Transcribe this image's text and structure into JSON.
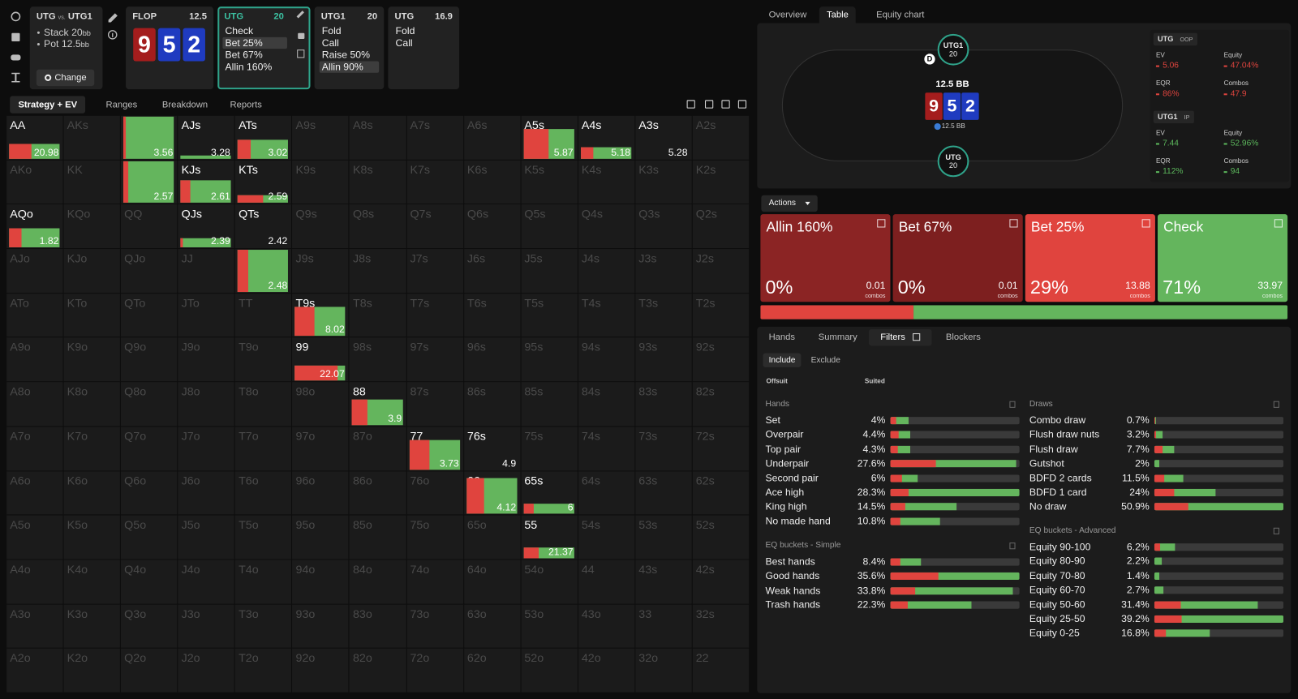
{
  "spot": {
    "left": "UTG",
    "vs": "vs.",
    "right": "UTG1",
    "stack": "Stack 20",
    "stack_unit": "bb",
    "pot": "Pot 12.5",
    "pot_unit": "bb",
    "button": "Change"
  },
  "board": {
    "street": "FLOP",
    "pot": "12.5",
    "cards": [
      {
        "rank": "9",
        "color": "#a41d1d"
      },
      {
        "rank": "5",
        "color": "#1f3bc0"
      },
      {
        "rank": "2",
        "color": "#1f3bc0"
      }
    ]
  },
  "players": [
    {
      "name": "UTG",
      "stack": "20",
      "actions": [
        "Check",
        "Bet 25%",
        "Bet 67%",
        "Allin 160%"
      ],
      "selected": 1,
      "active": true
    },
    {
      "name": "UTG1",
      "stack": "20",
      "actions": [
        "Fold",
        "Call",
        "Raise 50%",
        "Allin 90%"
      ],
      "selected": 3,
      "active": false
    },
    {
      "name": "UTG",
      "stack": "16.9",
      "actions": [
        "Fold",
        "Call"
      ],
      "selected": null,
      "active": false
    }
  ],
  "matrix": {
    "tabs": [
      "Strategy + EV",
      "Ranges",
      "Breakdown",
      "Reports"
    ],
    "rows": [
      [
        {
          "hand": "AA",
          "ev": 20.98,
          "bet": 45,
          "weight": 35
        },
        "AKs",
        {
          "hand": "AQs",
          "ev": 3.56,
          "bet": 5,
          "weight": 100
        },
        {
          "hand": "AJs",
          "ev": 3.28,
          "bet": 0,
          "weight": 8
        },
        {
          "hand": "ATs",
          "ev": 3.02,
          "bet": 25,
          "weight": 45
        },
        "A9s",
        "A8s",
        "A7s",
        "A6s",
        {
          "hand": "A5s",
          "ev": 5.87,
          "bet": 50,
          "weight": 70
        },
        {
          "hand": "A4s",
          "ev": 5.18,
          "bet": 25,
          "weight": 28
        },
        {
          "hand": "A3s",
          "ev": 5.28,
          "bet": 0,
          "weight": 0
        },
        "A2s"
      ],
      [
        "AKo",
        "KK",
        {
          "hand": "KQs",
          "ev": 2.57,
          "bet": 10,
          "weight": 100
        },
        {
          "hand": "KJs",
          "ev": 2.61,
          "bet": 20,
          "weight": 55
        },
        {
          "hand": "KTs",
          "ev": 2.59,
          "bet": 50,
          "weight": 18
        },
        "K9s",
        "K8s",
        "K7s",
        "K6s",
        "K5s",
        "K4s",
        "K3s",
        "K2s"
      ],
      [
        {
          "hand": "AQo",
          "ev": 1.82,
          "bet": 25,
          "weight": 45
        },
        "KQo",
        "QQ",
        {
          "hand": "QJs",
          "ev": 2.39,
          "bet": 5,
          "weight": 22
        },
        {
          "hand": "QTs",
          "ev": 2.42,
          "bet": 0,
          "weight": 0
        },
        "Q9s",
        "Q8s",
        "Q7s",
        "Q6s",
        "Q5s",
        "Q4s",
        "Q3s",
        "Q2s"
      ],
      [
        "AJo",
        "KJo",
        "QJo",
        "JJ",
        {
          "hand": "JTs",
          "ev": 2.48,
          "bet": 20,
          "weight": 100
        },
        "J9s",
        "J8s",
        "J7s",
        "J6s",
        "J5s",
        "J4s",
        "J3s",
        "J2s"
      ],
      [
        "ATo",
        "KTo",
        "QTo",
        "JTo",
        "TT",
        {
          "hand": "T9s",
          "ev": 8.02,
          "bet": 38,
          "weight": 70
        },
        "T8s",
        "T7s",
        "T6s",
        "T5s",
        "T4s",
        "T3s",
        "T2s"
      ],
      [
        "A9o",
        "K9o",
        "Q9o",
        "J9o",
        "T9o",
        {
          "hand": "99",
          "ev": 22.07,
          "bet": 85,
          "weight": 35
        },
        "98s",
        "97s",
        "96s",
        "95s",
        "94s",
        "93s",
        "92s"
      ],
      [
        "A8o",
        "K8o",
        "Q8o",
        "J8o",
        "T8o",
        "98o",
        {
          "hand": "88",
          "ev": 3.9,
          "bet": 30,
          "weight": 60
        },
        "87s",
        "86s",
        "85s",
        "84s",
        "83s",
        "82s"
      ],
      [
        "A7o",
        "K7o",
        "Q7o",
        "J7o",
        "T7o",
        "97o",
        "87o",
        {
          "hand": "77",
          "ev": 3.73,
          "bet": 40,
          "weight": 70
        },
        {
          "hand": "76s",
          "ev": 4.9,
          "bet": 0,
          "weight": 0
        },
        "75s",
        "74s",
        "73s",
        "72s"
      ],
      [
        "A6o",
        "K6o",
        "Q6o",
        "J6o",
        "T6o",
        "96o",
        "86o",
        "76o",
        {
          "hand": "66",
          "ev": 4.12,
          "bet": 35,
          "weight": 85
        },
        {
          "hand": "65s",
          "ev": 6,
          "bet": 20,
          "weight": 25
        },
        "64s",
        "63s",
        "62s"
      ],
      [
        "A5o",
        "K5o",
        "Q5o",
        "J5o",
        "T5o",
        "95o",
        "85o",
        "75o",
        "65o",
        {
          "hand": "55",
          "ev": 21.37,
          "bet": 30,
          "weight": 25
        },
        "54s",
        "53s",
        "52s"
      ],
      [
        "A4o",
        "K4o",
        "Q4o",
        "J4o",
        "T4o",
        "94o",
        "84o",
        "74o",
        "64o",
        "54o",
        "44",
        "43s",
        "42s"
      ],
      [
        "A3o",
        "K3o",
        "Q3o",
        "J3o",
        "T3o",
        "93o",
        "83o",
        "73o",
        "63o",
        "53o",
        "43o",
        "33",
        "32s"
      ],
      [
        "A2o",
        "K2o",
        "Q2o",
        "J2o",
        "T2o",
        "92o",
        "82o",
        "72o",
        "62o",
        "52o",
        "42o",
        "32o",
        "22"
      ]
    ]
  },
  "view_tabs": [
    "Overview",
    "Table",
    "Equity chart"
  ],
  "table": {
    "seats": [
      {
        "name": "UTG1",
        "stack": "20"
      },
      {
        "name": "UTG",
        "stack": "20"
      }
    ],
    "pot": "12.5 BB",
    "chip": "12.5 BB",
    "dealer": "D"
  },
  "stats": [
    {
      "name": "UTG",
      "position": "OOP",
      "color": "#e0443e",
      "items": [
        {
          "label": "EV",
          "value": "5.06"
        },
        {
          "label": "Equity",
          "value": "47.04%"
        },
        {
          "label": "EQR",
          "value": "86%"
        },
        {
          "label": "Combos",
          "value": "47.9"
        }
      ]
    },
    {
      "name": "UTG1",
      "position": "IP",
      "color": "#5cb85c",
      "items": [
        {
          "label": "EV",
          "value": "7.44"
        },
        {
          "label": "Equity",
          "value": "52.96%"
        },
        {
          "label": "EQR",
          "value": "112%"
        },
        {
          "label": "Combos",
          "value": "94"
        }
      ]
    }
  ],
  "actions": {
    "label": "Actions",
    "combos_label": "combos",
    "cards": [
      {
        "name": "Allin 160%",
        "freq": {
          "value": 0,
          "label": "0%"
        },
        "combos": 0.01,
        "color": "#8b2424"
      },
      {
        "name": "Bet 67%",
        "freq": {
          "value": 0,
          "label": "0%"
        },
        "combos": 0.01,
        "color": "#7d1f1f"
      },
      {
        "name": "Bet 25%",
        "freq": {
          "value": 29,
          "label": "29%"
        },
        "combos": 13.88,
        "color": "#e0443e"
      },
      {
        "name": "Check",
        "freq": {
          "value": 71,
          "label": "71%"
        },
        "combos": 33.97,
        "color": "#64b55d"
      }
    ]
  },
  "filters": {
    "tabs": [
      "Hands",
      "Summary",
      "Filters",
      "Blockers"
    ],
    "selected_tab": 2,
    "mode": [
      "Include",
      "Exclude"
    ],
    "offsuit": "Offsuit",
    "suited": "Suited",
    "sections": [
      {
        "title": "Hands",
        "rows": [
          {
            "name": "Set",
            "pct": {
              "value": 4,
              "label": "4%"
            },
            "bet": 30
          },
          {
            "name": "Overpair",
            "pct": {
              "value": 4.4,
              "label": "4.4%"
            },
            "bet": 40
          },
          {
            "name": "Top pair",
            "pct": {
              "value": 4.3,
              "label": "4.3%"
            },
            "bet": 40
          },
          {
            "name": "Underpair",
            "pct": {
              "value": 27.6,
              "label": "27.6%"
            },
            "bet": 36
          },
          {
            "name": "Second pair",
            "pct": {
              "value": 6,
              "label": "6%"
            },
            "bet": 43
          },
          {
            "name": "Ace high",
            "pct": {
              "value": 28.3,
              "label": "28.3%"
            },
            "bet": 14
          },
          {
            "name": "King high",
            "pct": {
              "value": 14.5,
              "label": "14.5%"
            },
            "bet": 22
          },
          {
            "name": "No made hand",
            "pct": {
              "value": 10.8,
              "label": "10.8%"
            },
            "bet": 20
          }
        ]
      },
      {
        "title": "EQ buckets - Simple",
        "rows": [
          {
            "name": "Best hands",
            "pct": {
              "value": 8.4,
              "label": "8.4%"
            },
            "bet": 32
          },
          {
            "name": "Good hands",
            "pct": {
              "value": 35.6,
              "label": "35.6%"
            },
            "bet": 37
          },
          {
            "name": "Weak hands",
            "pct": {
              "value": 33.8,
              "label": "33.8%"
            },
            "bet": 20
          },
          {
            "name": "Trash hands",
            "pct": {
              "value": 22.3,
              "label": "22.3%"
            },
            "bet": 21
          }
        ]
      },
      {
        "title": "Draws",
        "rows": [
          {
            "name": "Combo draw",
            "pct": {
              "value": 0.7,
              "label": "0.7%"
            },
            "bet": 50
          },
          {
            "name": "Flush draw nuts",
            "pct": {
              "value": 3.2,
              "label": "3.2%"
            },
            "bet": 20
          },
          {
            "name": "Flush draw",
            "pct": {
              "value": 7.7,
              "label": "7.7%"
            },
            "bet": 43
          },
          {
            "name": "Gutshot",
            "pct": {
              "value": 2,
              "label": "2%"
            },
            "bet": 0
          },
          {
            "name": "BDFD 2 cards",
            "pct": {
              "value": 11.5,
              "label": "11.5%"
            },
            "bet": 34
          },
          {
            "name": "BDFD 1 card",
            "pct": {
              "value": 24,
              "label": "24%"
            },
            "bet": 33
          },
          {
            "name": "No draw",
            "pct": {
              "value": 50.9,
              "label": "50.9%"
            },
            "bet": 26
          }
        ]
      },
      {
        "title": "EQ buckets - Advanced",
        "rows": [
          {
            "name": "Equity 90-100",
            "pct": {
              "value": 6.2,
              "label": "6.2%"
            },
            "bet": 27
          },
          {
            "name": "Equity 80-90",
            "pct": {
              "value": 2.2,
              "label": "2.2%"
            },
            "bet": 0
          },
          {
            "name": "Equity 70-80",
            "pct": {
              "value": 1.4,
              "label": "1.4%"
            },
            "bet": 0
          },
          {
            "name": "Equity 60-70",
            "pct": {
              "value": 2.7,
              "label": "2.7%"
            },
            "bet": 0
          },
          {
            "name": "Equity 50-60",
            "pct": {
              "value": 31.4,
              "label": "31.4%"
            },
            "bet": 26
          },
          {
            "name": "Equity 25-50",
            "pct": {
              "value": 39.2,
              "label": "39.2%"
            },
            "bet": 21
          },
          {
            "name": "Equity 0-25",
            "pct": {
              "value": 16.8,
              "label": "16.8%"
            },
            "bet": 21
          }
        ]
      }
    ]
  }
}
